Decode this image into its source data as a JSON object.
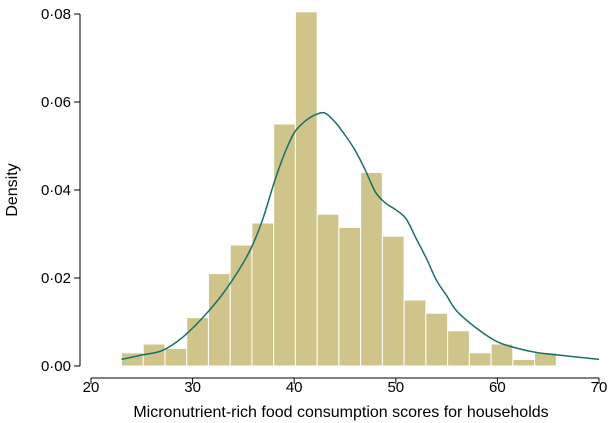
{
  "chart_data": {
    "type": "bar",
    "title": "",
    "xlabel": "Micronutrient-rich food consumption scores for households",
    "ylabel": "Density",
    "xlim": [
      20,
      70
    ],
    "ylim": [
      0,
      0.08
    ],
    "x_ticks": [
      20,
      30,
      40,
      50,
      60,
      70
    ],
    "x_tick_labels": [
      "20",
      "30",
      "40",
      "50",
      "60",
      "70"
    ],
    "y_ticks": [
      0,
      0.02,
      0.04,
      0.06,
      0.08
    ],
    "y_tick_labels": [
      "0·00",
      "0·02",
      "0·04",
      "0·06",
      "0·08"
    ],
    "grid": false,
    "legend": "none",
    "histogram": {
      "bin_width": 2.14,
      "bins": [
        {
          "start": 23.0,
          "density": 0.003
        },
        {
          "start": 25.14,
          "density": 0.005
        },
        {
          "start": 27.28,
          "density": 0.004
        },
        {
          "start": 29.42,
          "density": 0.011
        },
        {
          "start": 31.56,
          "density": 0.021
        },
        {
          "start": 33.7,
          "density": 0.0275
        },
        {
          "start": 35.84,
          "density": 0.0325
        },
        {
          "start": 37.98,
          "density": 0.055
        },
        {
          "start": 40.12,
          "density": 0.0805
        },
        {
          "start": 42.26,
          "density": 0.0345
        },
        {
          "start": 44.4,
          "density": 0.0315
        },
        {
          "start": 46.54,
          "density": 0.044
        },
        {
          "start": 48.68,
          "density": 0.0295
        },
        {
          "start": 50.82,
          "density": 0.015
        },
        {
          "start": 52.96,
          "density": 0.012
        },
        {
          "start": 55.1,
          "density": 0.008
        },
        {
          "start": 57.24,
          "density": 0.003
        },
        {
          "start": 59.38,
          "density": 0.005
        },
        {
          "start": 61.52,
          "density": 0.0015
        },
        {
          "start": 63.66,
          "density": 0.003
        }
      ]
    },
    "density_curve": {
      "x": [
        23,
        25,
        27,
        29,
        31,
        33,
        35,
        36,
        37,
        38,
        39,
        40,
        41,
        42,
        43,
        44,
        45,
        46,
        47,
        48,
        49,
        50,
        51,
        52,
        53,
        54,
        55,
        56,
        58,
        60,
        62,
        64,
        66,
        68,
        70
      ],
      "y": [
        0.0015,
        0.0025,
        0.0035,
        0.0065,
        0.011,
        0.0165,
        0.0235,
        0.028,
        0.034,
        0.0415,
        0.048,
        0.053,
        0.0555,
        0.057,
        0.0575,
        0.0555,
        0.0525,
        0.049,
        0.0445,
        0.0395,
        0.037,
        0.0355,
        0.0335,
        0.029,
        0.0245,
        0.0195,
        0.016,
        0.0125,
        0.0085,
        0.0055,
        0.004,
        0.003,
        0.0025,
        0.002,
        0.0015
      ]
    },
    "colors": {
      "bar_fill": "#cfc58a",
      "bar_stroke": "#ffffff",
      "curve": "#1a6f6a",
      "axis": "#000000"
    }
  }
}
